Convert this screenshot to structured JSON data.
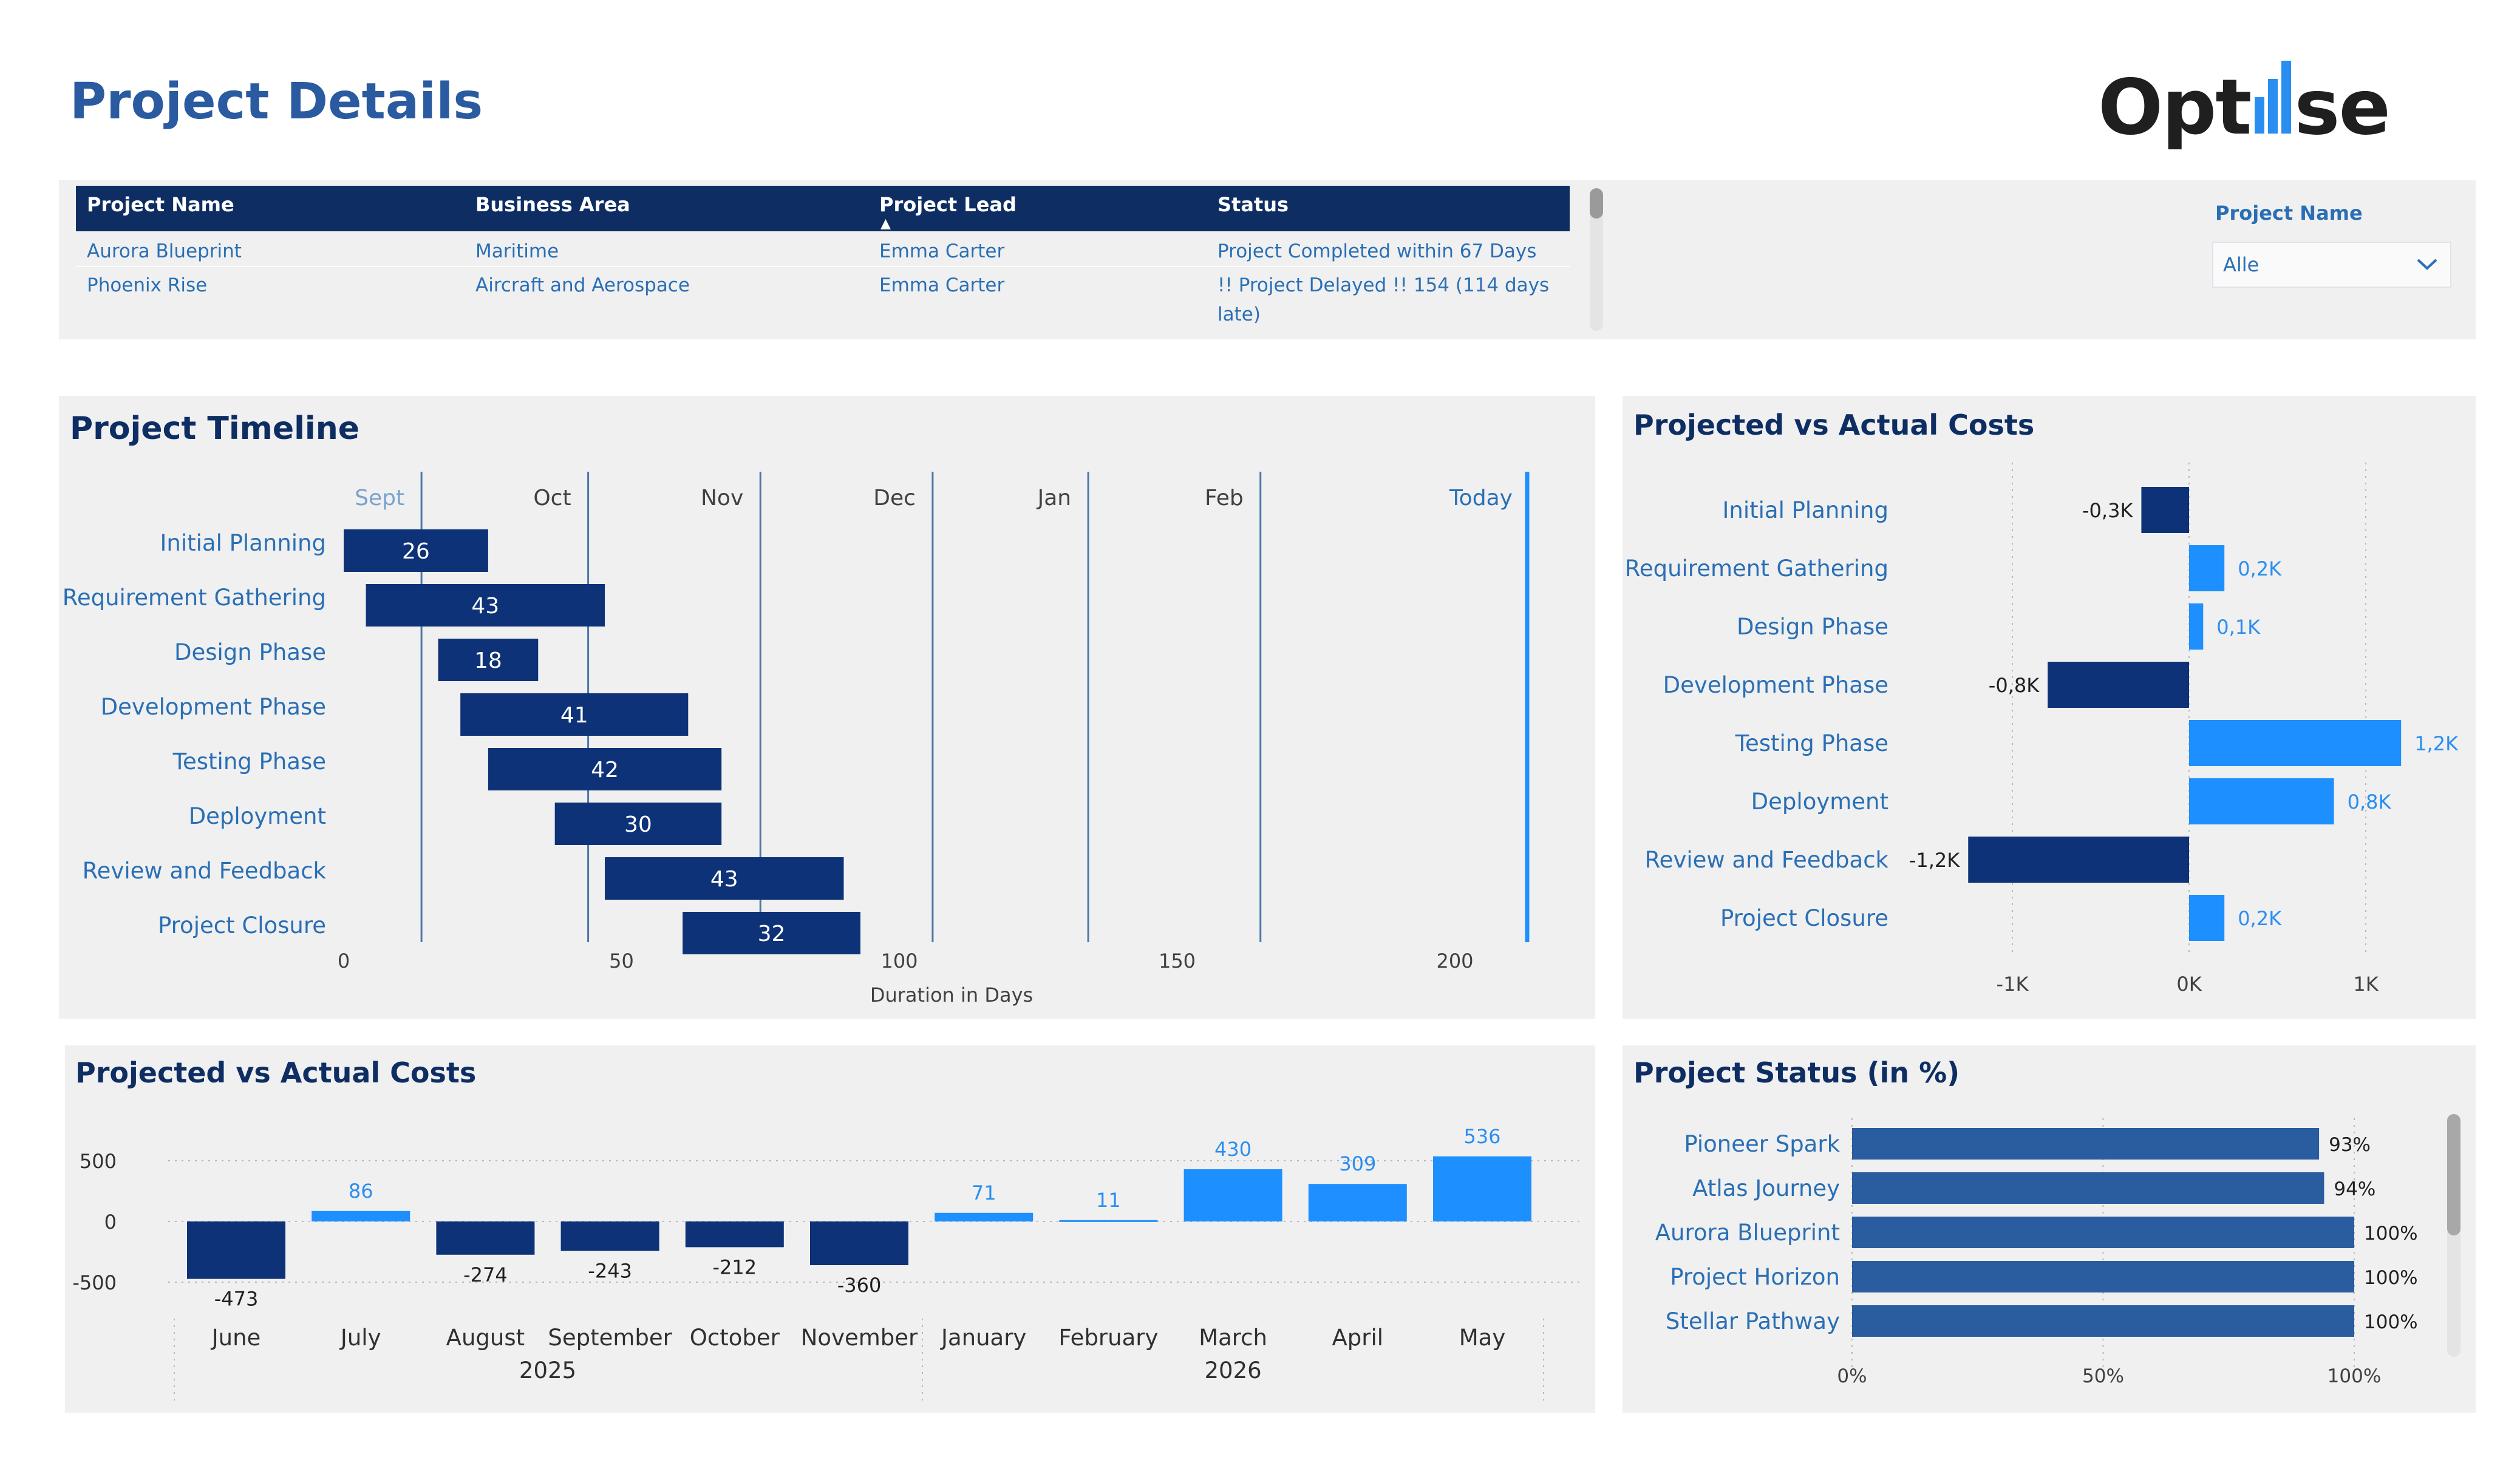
{
  "page": {
    "title": "Project Details"
  },
  "logo": {
    "text_left": "Opt",
    "text_right": "se"
  },
  "table": {
    "columns": [
      "Project Name",
      "Business Area",
      "Project Lead",
      "Status"
    ],
    "rows": [
      [
        "Aurora Blueprint",
        "Maritime",
        "Emma Carter",
        "Project Completed within 67 Days"
      ],
      [
        "Phoenix Rise",
        "Aircraft and Aerospace",
        "Emma Carter",
        "!! Project Delayed !! 154 (114 days late)"
      ]
    ]
  },
  "slicer": {
    "label": "Project Name",
    "value": "Alle"
  },
  "timeline": {
    "title": "Project Timeline",
    "xlabel": "Duration in Days",
    "month_labels": [
      "Sept",
      "Oct",
      "Nov",
      "Dec",
      "Jan",
      "Feb"
    ],
    "today_label": "Today",
    "ticks": [
      "0",
      "50",
      "100",
      "150",
      "200"
    ]
  },
  "cost_panel": {
    "title": "Projected vs Actual Costs"
  },
  "monthly_panel": {
    "title": "Projected vs Actual Costs"
  },
  "status_panel": {
    "title": "Project Status (in %)"
  },
  "chart_data": [
    {
      "type": "bar",
      "orientation": "horizontal-gantt",
      "title": "Project Timeline",
      "xlabel": "Duration in Days",
      "xlim": [
        0,
        225
      ],
      "x_ticks": [
        0,
        50,
        100,
        150,
        200
      ],
      "month_markers": [
        {
          "label": "Sept",
          "day": 14
        },
        {
          "label": "Oct",
          "day": 44
        },
        {
          "label": "Nov",
          "day": 75
        },
        {
          "label": "Dec",
          "day": 106
        },
        {
          "label": "Jan",
          "day": 134
        },
        {
          "label": "Feb",
          "day": 165
        }
      ],
      "today_day": 213,
      "categories": [
        "Initial Planning",
        "Requirement Gathering",
        "Design Phase",
        "Development Phase",
        "Testing Phase",
        "Deployment",
        "Review and Feedback",
        "Project Closure"
      ],
      "start": [
        0,
        4,
        17,
        21,
        26,
        38,
        47,
        61
      ],
      "duration": [
        26,
        43,
        18,
        41,
        42,
        30,
        43,
        32
      ],
      "colors": {
        "bar": "#0e3277",
        "grid": "#4c78a8",
        "today": "#1e8fff"
      }
    },
    {
      "type": "bar",
      "orientation": "horizontal",
      "title": "Projected vs Actual Costs",
      "categories": [
        "Initial Planning",
        "Requirement Gathering",
        "Design Phase",
        "Development Phase",
        "Testing Phase",
        "Deployment",
        "Review and Feedback",
        "Project Closure"
      ],
      "values": [
        -0.27,
        0.2,
        0.08,
        -0.8,
        1.2,
        0.82,
        -1.25,
        0.2
      ],
      "labels": [
        "-0,3K",
        "0,2K",
        "0,1K",
        "-0,8K",
        "1,2K",
        "0,8K",
        "-1,2K",
        "0,2K"
      ],
      "x_ticks": [
        "-1K",
        "0K",
        "1K"
      ],
      "xlim": [
        -1.4,
        1.25
      ],
      "colors": {
        "negative": "#0e3277",
        "positive": "#1e8fff"
      }
    },
    {
      "type": "bar",
      "title": "Projected vs Actual Costs",
      "categories": [
        "June",
        "July",
        "August",
        "September",
        "October",
        "November",
        "January",
        "February",
        "March",
        "April",
        "May"
      ],
      "years": [
        {
          "label": "2025",
          "span": [
            0,
            5
          ]
        },
        {
          "label": "2026",
          "span": [
            6,
            10
          ]
        }
      ],
      "values": [
        -473,
        86,
        -274,
        -243,
        -212,
        -360,
        71,
        11,
        430,
        309,
        536
      ],
      "y_ticks": [
        500,
        0,
        -500
      ],
      "ylim": [
        -650,
        650
      ],
      "colors": {
        "negative": "#0e3277",
        "positive": "#1e8fff"
      }
    },
    {
      "type": "bar",
      "orientation": "horizontal",
      "title": "Project Status (in %)",
      "categories": [
        "Pioneer Spark",
        "Atlas Journey",
        "Aurora Blueprint",
        "Project Horizon",
        "Stellar Pathway"
      ],
      "values": [
        93,
        94,
        100,
        100,
        100
      ],
      "labels": [
        "93%",
        "94%",
        "100%",
        "100%",
        "100%"
      ],
      "x_ticks": [
        "0%",
        "50%",
        "100%"
      ],
      "xlim": [
        0,
        100
      ],
      "colors": {
        "bar": "#2a5ca0"
      }
    }
  ]
}
